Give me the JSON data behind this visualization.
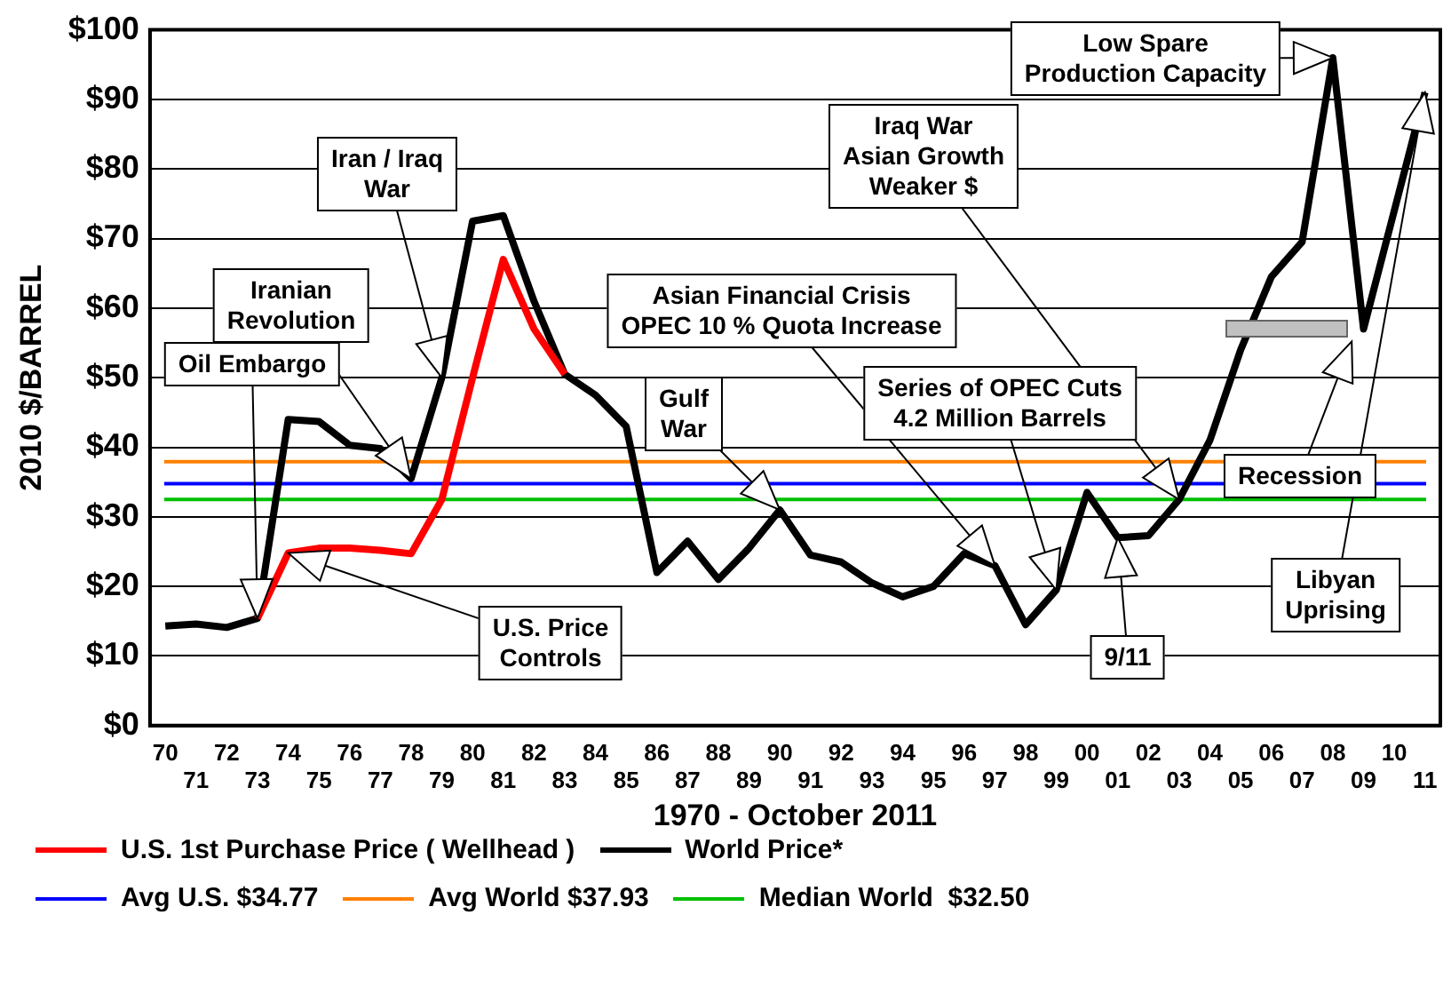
{
  "chart_data": {
    "type": "line",
    "xlabel": "1970 - October 2011",
    "ylabel": "2010 $/BARREL",
    "categories": [
      "70",
      "71",
      "72",
      "73",
      "74",
      "75",
      "76",
      "77",
      "78",
      "79",
      "80",
      "81",
      "82",
      "83",
      "84",
      "85",
      "86",
      "87",
      "88",
      "89",
      "90",
      "91",
      "92",
      "93",
      "94",
      "95",
      "96",
      "97",
      "98",
      "99",
      "00",
      "01",
      "02",
      "03",
      "04",
      "05",
      "06",
      "07",
      "08",
      "09",
      "10",
      "11"
    ],
    "series": [
      {
        "name": "U.S. 1st Purchase Price ( Wellhead )",
        "color": "#ff0000",
        "values": [
          null,
          null,
          null,
          15.4,
          24.8,
          25.5,
          25.5,
          25.2,
          24.7,
          32.5,
          50,
          67,
          57,
          50.5,
          null,
          null,
          null,
          null,
          null,
          null,
          null,
          null,
          null,
          null,
          null,
          null,
          null,
          null,
          null,
          null,
          null,
          null,
          null,
          null,
          null,
          null,
          null,
          null,
          null,
          null,
          null,
          null
        ]
      },
      {
        "name": "World Price*",
        "color": "#000000",
        "values": [
          14.3,
          14.6,
          14.1,
          15.4,
          44,
          43.7,
          40.3,
          39.8,
          35.5,
          50,
          72.5,
          73.3,
          61,
          50.5,
          47.5,
          43,
          22,
          26.5,
          21,
          25.5,
          31,
          24.5,
          23.5,
          20.5,
          18.5,
          20,
          24.7,
          23,
          14.5,
          19.5,
          33.5,
          27,
          27.3,
          32.5,
          41,
          54,
          64.5,
          69.5,
          96,
          57,
          74,
          91
        ]
      }
    ],
    "ylim": [
      0,
      100
    ],
    "yticks": [
      {
        "value": 0,
        "label": "$0"
      },
      {
        "value": 10,
        "label": "$10"
      },
      {
        "value": 20,
        "label": "$20"
      },
      {
        "value": 30,
        "label": "$30"
      },
      {
        "value": 40,
        "label": "$40"
      },
      {
        "value": 50,
        "label": "$50"
      },
      {
        "value": 60,
        "label": "$60"
      },
      {
        "value": 70,
        "label": "$70"
      },
      {
        "value": 80,
        "label": "$80"
      },
      {
        "value": 90,
        "label": "$90"
      },
      {
        "value": 100,
        "label": "$100"
      }
    ],
    "grid": "y",
    "legend": "bottom",
    "marker": "none",
    "line_style": "solid",
    "ref_lines": [
      {
        "axis": "y",
        "value": 34.77,
        "label": "Avg U.S. $34.77",
        "color": "#0000ff"
      },
      {
        "axis": "y",
        "value": 37.93,
        "label": "Avg World $37.93",
        "color": "#ff8000"
      },
      {
        "axis": "y",
        "value": 32.5,
        "label": "Median World  $32.50",
        "color": "#00c000"
      }
    ],
    "annotations": [
      {
        "text": "Oil Embargo",
        "x": "73",
        "y": 15.4
      },
      {
        "text": "Iranian\nRevolution",
        "x": "78",
        "y": 35.5
      },
      {
        "text": "Iran / Iraq\nWar",
        "x": "79",
        "y": 50
      },
      {
        "text": "U.S. Price\nControls",
        "x": "74",
        "y": 24.8
      },
      {
        "text": "Asian Financial Crisis\nOPEC 10 % Quota Increase",
        "x": "97",
        "y": 23
      },
      {
        "text": "Gulf\nWar",
        "x": "90",
        "y": 31
      },
      {
        "text": "Series of OPEC Cuts\n4.2 Million Barrels",
        "x": "99",
        "y": 19.5
      },
      {
        "text": "Iraq War\nAsian Growth\nWeaker $",
        "x": "03",
        "y": 32.5
      },
      {
        "text": "Low Spare\nProduction Capacity",
        "x": "08",
        "y": 96
      },
      {
        "text": "9/11",
        "x": "01",
        "y": 27
      },
      {
        "text": "Libyan\nUprising",
        "x": "11",
        "y": 91
      },
      "Recession"
    ]
  }
}
